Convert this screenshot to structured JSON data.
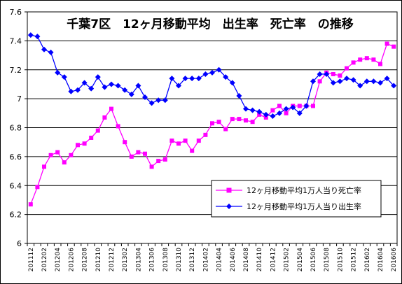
{
  "chart_data": {
    "type": "line",
    "title": "千葉7区　12ヶ月移動平均　出生率　死亡率　の推移",
    "xlabel": "",
    "ylabel": "",
    "ylim": [
      6,
      7.6
    ],
    "yticks": [
      "6",
      "6.2",
      "6.4",
      "6.6",
      "6.8",
      "7",
      "7.2",
      "7.4",
      "7.6"
    ],
    "grid": "horizontal",
    "legend_position": "lower-right",
    "x": [
      "201112",
      "201201",
      "201202",
      "201203",
      "201204",
      "201205",
      "201206",
      "201207",
      "201208",
      "201209",
      "201210",
      "201211",
      "201212",
      "201301",
      "201302",
      "201303",
      "201304",
      "201305",
      "201306",
      "201307",
      "201308",
      "201309",
      "201310",
      "201311",
      "201312",
      "201401",
      "201402",
      "201403",
      "201404",
      "201405",
      "201406",
      "201407",
      "201408",
      "201409",
      "201410",
      "201411",
      "201412",
      "201501",
      "201502",
      "201503",
      "201504",
      "201505",
      "201506",
      "201507",
      "201508",
      "201509",
      "201510",
      "201511",
      "201512",
      "201601",
      "201602",
      "201603",
      "201604",
      "201605",
      "201606"
    ],
    "xtick_labels": [
      "201112",
      "201202",
      "201204",
      "201206",
      "201208",
      "201210",
      "201212",
      "201302",
      "201304",
      "201306",
      "201308",
      "201310",
      "201312",
      "201402",
      "201404",
      "201406",
      "201408",
      "201410",
      "201412",
      "201502",
      "201504",
      "201506",
      "201508",
      "201510",
      "201512",
      "201602",
      "201604",
      "201606"
    ],
    "series": [
      {
        "name": "12ヶ月移動平均1万人当り死亡率",
        "color": "#ff00ff",
        "marker": "square",
        "values": [
          6.27,
          6.39,
          6.53,
          6.61,
          6.63,
          6.56,
          6.61,
          6.68,
          6.69,
          6.73,
          6.78,
          6.87,
          6.93,
          6.81,
          6.7,
          6.6,
          6.63,
          6.62,
          6.53,
          6.57,
          6.58,
          6.71,
          6.69,
          6.71,
          6.64,
          6.71,
          6.75,
          6.83,
          6.84,
          6.79,
          6.86,
          6.86,
          6.85,
          6.84,
          6.89,
          6.87,
          6.92,
          6.95,
          6.9,
          6.95,
          6.95,
          6.95,
          6.95,
          7.12,
          7.18,
          7.17,
          7.16,
          7.21,
          7.25,
          7.27,
          7.28,
          7.27,
          7.24,
          7.38,
          7.36
        ]
      },
      {
        "name": "12ヶ月移動平均1万人当り出生率",
        "color": "#0000ff",
        "marker": "diamond",
        "values": [
          7.44,
          7.43,
          7.34,
          7.32,
          7.18,
          7.15,
          7.05,
          7.06,
          7.11,
          7.07,
          7.15,
          7.08,
          7.1,
          7.09,
          7.06,
          7.03,
          7.09,
          7.01,
          6.97,
          6.99,
          6.99,
          7.14,
          7.09,
          7.14,
          7.14,
          7.14,
          7.17,
          7.18,
          7.2,
          7.15,
          7.11,
          7.02,
          6.93,
          6.92,
          6.91,
          6.89,
          6.88,
          6.9,
          6.93,
          6.94,
          6.9,
          6.95,
          7.12,
          7.17,
          7.17,
          7.11,
          7.12,
          7.14,
          7.13,
          7.09,
          7.12,
          7.12,
          7.11,
          7.14,
          7.09
        ]
      }
    ]
  }
}
